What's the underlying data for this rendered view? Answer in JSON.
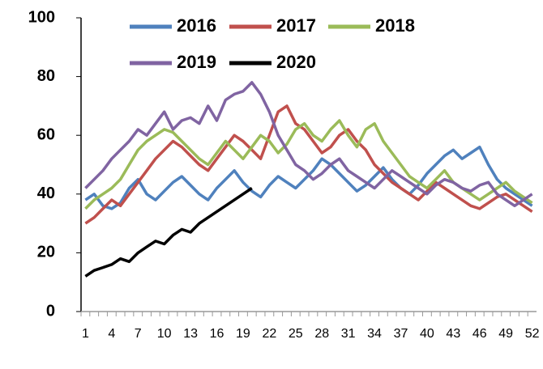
{
  "chart_data": {
    "type": "line",
    "categories": [
      "1",
      null,
      null,
      "4",
      null,
      null,
      "7",
      null,
      null,
      "10",
      null,
      null,
      "13",
      null,
      null,
      "16",
      null,
      null,
      "19",
      null,
      null,
      "22",
      null,
      null,
      "25",
      null,
      null,
      "28",
      null,
      null,
      "31",
      null,
      null,
      "34",
      null,
      null,
      "37",
      null,
      null,
      "40",
      null,
      null,
      "43",
      null,
      null,
      "46",
      null,
      null,
      "49",
      null,
      null,
      "52"
    ],
    "series": [
      {
        "name": "2016",
        "color": "#4f81bd",
        "values": [
          38,
          40,
          36,
          35,
          37,
          42,
          45,
          40,
          38,
          41,
          44,
          46,
          43,
          40,
          38,
          42,
          45,
          48,
          44,
          41,
          39,
          43,
          46,
          44,
          42,
          45,
          48,
          52,
          50,
          47,
          44,
          41,
          43,
          46,
          49,
          45,
          42,
          40,
          43,
          47,
          50,
          53,
          55,
          52,
          54,
          56,
          50,
          45,
          42,
          40,
          38,
          36
        ]
      },
      {
        "name": "2017",
        "color": "#c0504d",
        "values": [
          30,
          32,
          35,
          38,
          36,
          40,
          44,
          48,
          52,
          55,
          58,
          56,
          53,
          50,
          48,
          52,
          56,
          60,
          58,
          55,
          52,
          60,
          68,
          70,
          64,
          62,
          58,
          54,
          56,
          60,
          62,
          58,
          55,
          50,
          47,
          44,
          42,
          40,
          38,
          41,
          44,
          42,
          40,
          38,
          36,
          35,
          37,
          39,
          40,
          38,
          36,
          34
        ]
      },
      {
        "name": "2018",
        "color": "#9bbb59",
        "values": [
          35,
          38,
          40,
          42,
          45,
          50,
          55,
          58,
          60,
          62,
          61,
          58,
          55,
          52,
          50,
          54,
          58,
          55,
          52,
          56,
          60,
          58,
          54,
          57,
          62,
          64,
          60,
          58,
          62,
          65,
          60,
          56,
          62,
          64,
          58,
          54,
          50,
          46,
          44,
          42,
          45,
          48,
          44,
          42,
          40,
          38,
          40,
          42,
          44,
          41,
          39,
          37
        ]
      },
      {
        "name": "2019",
        "color": "#8064a2",
        "values": [
          42,
          45,
          48,
          52,
          55,
          58,
          62,
          60,
          64,
          68,
          62,
          65,
          66,
          64,
          70,
          65,
          72,
          74,
          75,
          78,
          74,
          68,
          60,
          55,
          50,
          48,
          45,
          47,
          50,
          52,
          48,
          46,
          44,
          42,
          45,
          48,
          46,
          44,
          42,
          40,
          43,
          45,
          44,
          42,
          41,
          43,
          44,
          40,
          38,
          36,
          38,
          40
        ]
      },
      {
        "name": "2020",
        "color": "#000000",
        "values": [
          12,
          14,
          15,
          16,
          18,
          17,
          20,
          22,
          24,
          23,
          26,
          28,
          27,
          30,
          32,
          34,
          36,
          38,
          40,
          42,
          null,
          null,
          null,
          null,
          null,
          null,
          null,
          null,
          null,
          null,
          null,
          null,
          null,
          null,
          null,
          null,
          null,
          null,
          null,
          null,
          null,
          null,
          null,
          null,
          null,
          null,
          null,
          null,
          null,
          null,
          null,
          null
        ]
      }
    ],
    "ylim": [
      0,
      100
    ],
    "yticks": [
      0,
      20,
      40,
      60,
      80,
      100
    ]
  }
}
